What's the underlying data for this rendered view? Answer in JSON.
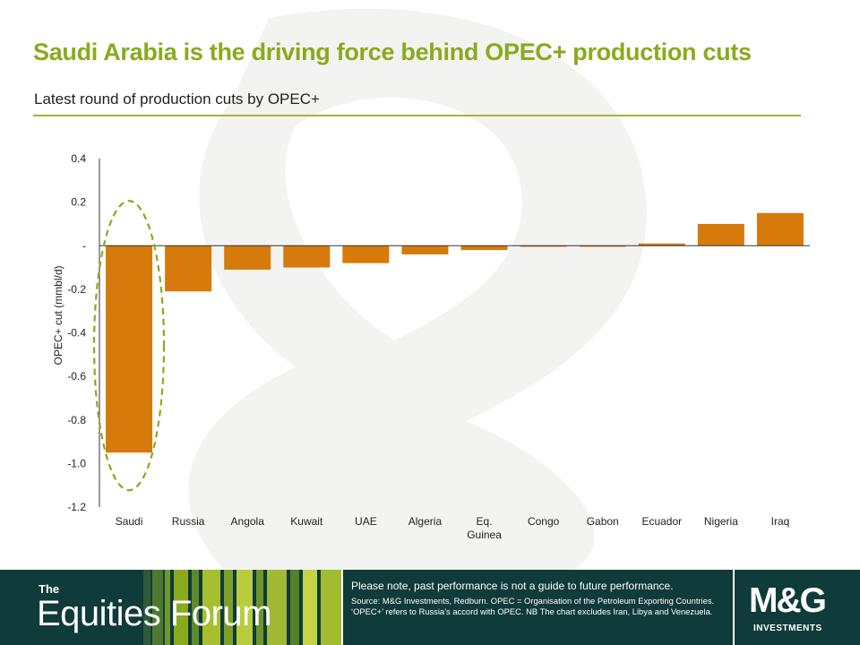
{
  "header": {
    "title": "Saudi Arabia is the driving force behind OPEC+ production cuts",
    "subtitle": "Latest round of production cuts by OPEC+"
  },
  "chart_data": {
    "type": "bar",
    "categories": [
      "Saudi",
      "Russia",
      "Angola",
      "Kuwait",
      "UAE",
      "Algeria",
      "Eq. Guinea",
      "Congo",
      "Gabon",
      "Ecuador",
      "Nigeria",
      "Iraq"
    ],
    "category_lines": [
      [
        "Saudi"
      ],
      [
        "Russia"
      ],
      [
        "Angola"
      ],
      [
        "Kuwait"
      ],
      [
        "UAE"
      ],
      [
        "Algeria"
      ],
      [
        "Eq.",
        "Guinea"
      ],
      [
        "Congo"
      ],
      [
        "Gabon"
      ],
      [
        "Ecuador"
      ],
      [
        "Nigeria"
      ],
      [
        "Iraq"
      ]
    ],
    "values": [
      -0.95,
      -0.21,
      -0.11,
      -0.1,
      -0.08,
      -0.04,
      -0.02,
      -0.005,
      -0.005,
      0.01,
      0.1,
      0.15
    ],
    "ylabel": "OPEC+ cut (mmbl/d)",
    "ylim": [
      -1.2,
      0.4
    ],
    "yticks": [
      0.4,
      0.2,
      0,
      -0.2,
      -0.4,
      -0.6,
      -0.8,
      -1.0,
      -1.2
    ],
    "ytick_labels": [
      "0.4",
      "0.2",
      "-",
      "-0.2",
      "-0.4",
      "-0.6",
      "-0.8",
      "-1.0",
      "-1.2"
    ],
    "highlight": "Saudi",
    "bar_color": "#d57a0b",
    "highlight_color": "#8aaa1d",
    "grid": false
  },
  "footer": {
    "brand_prefix": "The",
    "brand_name": "Equities Forum",
    "disclaimer": "Please note, past performance  is not a guide to future performance.",
    "source": "Source: M&G Investments, Redburn. OPEC  = Organisation of the Petroleum Exporting Countries. ‘OPEC+’  refers to Russia’s accord with OPEC. NB The chart excludes Iran, Libya and Venezuela.",
    "logo": "M&G",
    "logo_sub": "INVESTMENTS"
  },
  "colors": {
    "title": "#8aaa1d",
    "footer_bg": "#0f3b3a",
    "rule": "#a8b52a"
  }
}
